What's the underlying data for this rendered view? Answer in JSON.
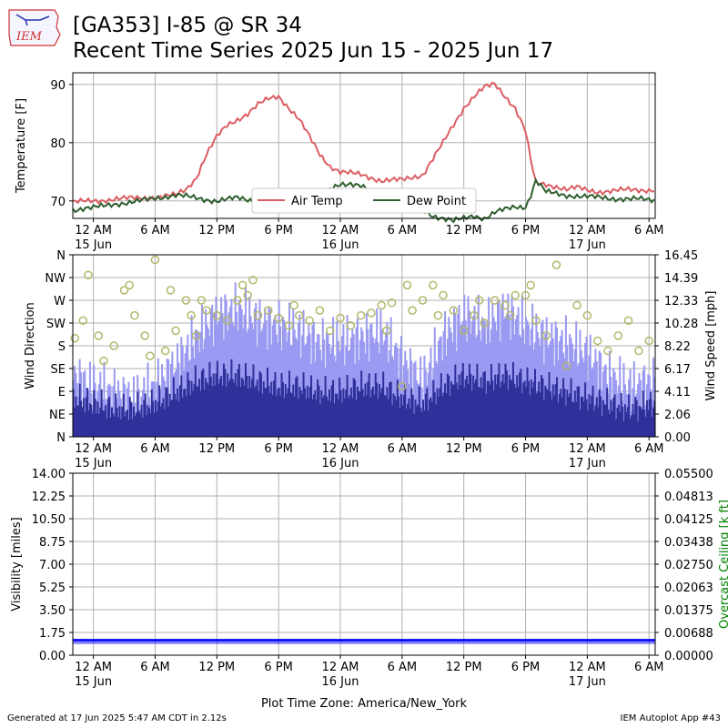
{
  "header": {
    "title_line1": "[GA353] I-85 @ SR 34",
    "title_line2": "Recent Time Series 2025 Jun 15 - 2025 Jun 17",
    "logo_text": "IEM"
  },
  "footer": {
    "generated": "Generated at 17 Jun 2025 5:47 AM CDT in 2.12s",
    "app": "IEM Autoplot App #43",
    "timezone_label": "Plot Time Zone: America/New_York"
  },
  "colors": {
    "air_temp": "#dc5e64",
    "dew_point": "#2f5f2f",
    "wind_gust": "#9a9af2",
    "wind_speed": "#30309a",
    "wind_dir": "#b3b86a",
    "visibility": "#0000ff",
    "ceiling_axis": "#008000"
  },
  "chart_data": [
    {
      "type": "line",
      "ylabel": "Temperature [F]",
      "x_range_hours": [
        -2,
        54.6
      ],
      "yticks": [
        70,
        80,
        90
      ],
      "ylim": [
        67,
        92
      ],
      "grid": true,
      "legend_position": "bottom-center",
      "series": [
        {
          "name": "Air Temp",
          "x": [
            -2,
            0,
            2,
            4,
            6,
            8,
            9,
            10,
            10.5,
            11,
            12,
            13,
            14,
            15,
            16,
            17,
            18,
            19,
            20,
            21,
            22,
            23,
            24,
            26,
            28,
            30,
            32,
            34,
            35,
            36,
            37,
            38,
            39,
            40,
            41,
            42,
            42.5,
            43,
            44,
            45,
            46,
            47,
            48,
            49,
            50,
            51,
            52,
            53,
            54,
            54.5
          ],
          "y": [
            69.8,
            70,
            70.3,
            70.5,
            70.6,
            71,
            72,
            74,
            76,
            78,
            81,
            83,
            84,
            85,
            86.5,
            87.5,
            88,
            86,
            84,
            81,
            78,
            76,
            75,
            74.5,
            73.5,
            73.6,
            74.5,
            80,
            83,
            86,
            88,
            89.5,
            90,
            88,
            86,
            82,
            77,
            73,
            72.8,
            72.5,
            72,
            72.3,
            71.8,
            71.6,
            71.7,
            71.8,
            71.9,
            71.9,
            71.9,
            71.9
          ]
        },
        {
          "name": "Dew Point",
          "x": [
            -2,
            0,
            2,
            4,
            6,
            8,
            10,
            12,
            14,
            16,
            18,
            19,
            20,
            21,
            22,
            23,
            24,
            25,
            26,
            27,
            28,
            30,
            31,
            32,
            33,
            34,
            35,
            36,
            37,
            38,
            39,
            40,
            41,
            42,
            42.5,
            43,
            44,
            46,
            48,
            50,
            52,
            53,
            54,
            54.5
          ],
          "y": [
            68.5,
            68.8,
            69.5,
            69.8,
            70.5,
            71,
            70.5,
            70,
            70.5,
            70,
            70,
            70,
            70,
            70,
            70.5,
            72,
            73,
            73,
            72.5,
            71.5,
            71,
            70.5,
            69.5,
            68.5,
            67.5,
            67,
            66.5,
            67,
            67.5,
            67,
            68,
            68.5,
            69,
            69,
            71,
            73.5,
            71.5,
            71,
            70.7,
            70.5,
            70.3,
            70.3,
            70.2,
            70.2
          ]
        }
      ]
    },
    {
      "type": "bar",
      "ylabel": "Wind Direction",
      "y2label": "Wind Speed [mph]",
      "x_range_hours": [
        -2,
        54.6
      ],
      "direction_ticks": [
        "N",
        "NE",
        "E",
        "SE",
        "S",
        "SW",
        "W",
        "NW",
        "N"
      ],
      "speed_ticks": [
        "0.00",
        "2.06",
        "4.11",
        "6.17",
        "8.22",
        "10.28",
        "12.33",
        "14.39",
        "16.45"
      ],
      "speed_ylim": [
        0,
        16.45
      ],
      "series": [
        {
          "name": "Wind Gust",
          "x": [
            -2,
            0,
            2,
            4,
            6,
            8,
            10,
            12,
            14,
            16,
            18,
            20,
            22,
            24,
            26,
            28,
            30,
            32,
            34,
            36,
            38,
            40,
            42,
            44,
            46,
            48,
            50,
            52,
            54.5
          ],
          "values": [
            5.5,
            4.5,
            4,
            3.5,
            4.5,
            6.5,
            9,
            11,
            11.5,
            10.5,
            10,
            9.5,
            8.5,
            8.5,
            9,
            9.5,
            7,
            5,
            9,
            11,
            10,
            11.5,
            10,
            9,
            8.5,
            7.5,
            5.5,
            4.5,
            5
          ]
        },
        {
          "name": "Wind Speed",
          "x": [
            -2,
            0,
            2,
            4,
            6,
            8,
            10,
            12,
            14,
            16,
            18,
            20,
            22,
            24,
            26,
            28,
            30,
            32,
            34,
            36,
            38,
            40,
            42,
            44,
            46,
            48,
            50,
            52,
            54.5
          ],
          "values": [
            3.5,
            3,
            2.5,
            2.5,
            3,
            4,
            5,
            5.5,
            5.5,
            5,
            4.5,
            4.5,
            4,
            4,
            4.5,
            4.5,
            3.5,
            3,
            4.5,
            5.5,
            5,
            5.5,
            5,
            4.5,
            4,
            3.5,
            3,
            2.5,
            3
          ]
        },
        {
          "name": "Wind Direction",
          "x": [
            -1.8,
            -1,
            -0.5,
            0.5,
            1,
            2,
            3,
            3.5,
            4,
            5,
            5.5,
            6,
            7,
            7.5,
            8,
            9,
            9.5,
            10,
            10.5,
            11,
            12,
            13,
            14,
            14.5,
            15,
            15.5,
            16,
            17,
            18,
            19,
            19.5,
            20,
            21,
            22,
            23,
            24,
            25,
            26,
            27,
            28,
            28.5,
            29,
            30,
            30.5,
            31,
            32,
            33,
            33.5,
            34,
            35,
            36,
            37,
            37.5,
            38,
            39,
            40,
            40.5,
            41,
            42,
            42.5,
            43,
            44,
            45,
            46,
            47,
            48,
            49,
            50,
            51,
            52,
            53,
            54
          ],
          "y": [
            195,
            230,
            320,
            200,
            150,
            180,
            290,
            300,
            240,
            200,
            160,
            350,
            170,
            290,
            210,
            270,
            240,
            200,
            270,
            250,
            240,
            230,
            270,
            300,
            280,
            310,
            240,
            250,
            235,
            220,
            260,
            240,
            230,
            250,
            210,
            235,
            220,
            240,
            245,
            260,
            210,
            265,
            100,
            300,
            250,
            270,
            300,
            240,
            280,
            250,
            210,
            240,
            270,
            225,
            270,
            260,
            240,
            280,
            280,
            300,
            230,
            200,
            340,
            140,
            260,
            240,
            190,
            170,
            200,
            230,
            170,
            190
          ]
        }
      ]
    },
    {
      "type": "bar",
      "ylabel": "Visibility [miles]",
      "y2label": "Overcast Ceiling [k ft]",
      "x_range_hours": [
        -2,
        54.6
      ],
      "vis_ticks": [
        "0.00",
        "1.75",
        "3.50",
        "5.25",
        "7.00",
        "8.75",
        "10.50",
        "12.25",
        "14.00"
      ],
      "ceiling_ticks": [
        "0.00000",
        "0.00688",
        "0.01375",
        "0.02063",
        "0.02750",
        "0.03438",
        "0.04125",
        "0.04813",
        "0.05500"
      ],
      "vis_ylim": [
        0,
        14
      ],
      "series": [
        {
          "name": "Visibility",
          "x": [
            -2,
            54.6
          ],
          "values": [
            1.25,
            1.25
          ]
        }
      ]
    }
  ],
  "x_ticks": [
    {
      "label": "12 AM",
      "sub": "15 Jun",
      "hour": 0
    },
    {
      "label": "6 AM",
      "sub": "",
      "hour": 6
    },
    {
      "label": "12 PM",
      "sub": "",
      "hour": 12
    },
    {
      "label": "6 PM",
      "sub": "",
      "hour": 18
    },
    {
      "label": "12 AM",
      "sub": "16 Jun",
      "hour": 24
    },
    {
      "label": "6 AM",
      "sub": "",
      "hour": 30
    },
    {
      "label": "12 PM",
      "sub": "",
      "hour": 36
    },
    {
      "label": "6 PM",
      "sub": "",
      "hour": 42
    },
    {
      "label": "12 AM",
      "sub": "17 Jun",
      "hour": 48
    },
    {
      "label": "6 AM",
      "sub": "",
      "hour": 54
    }
  ]
}
